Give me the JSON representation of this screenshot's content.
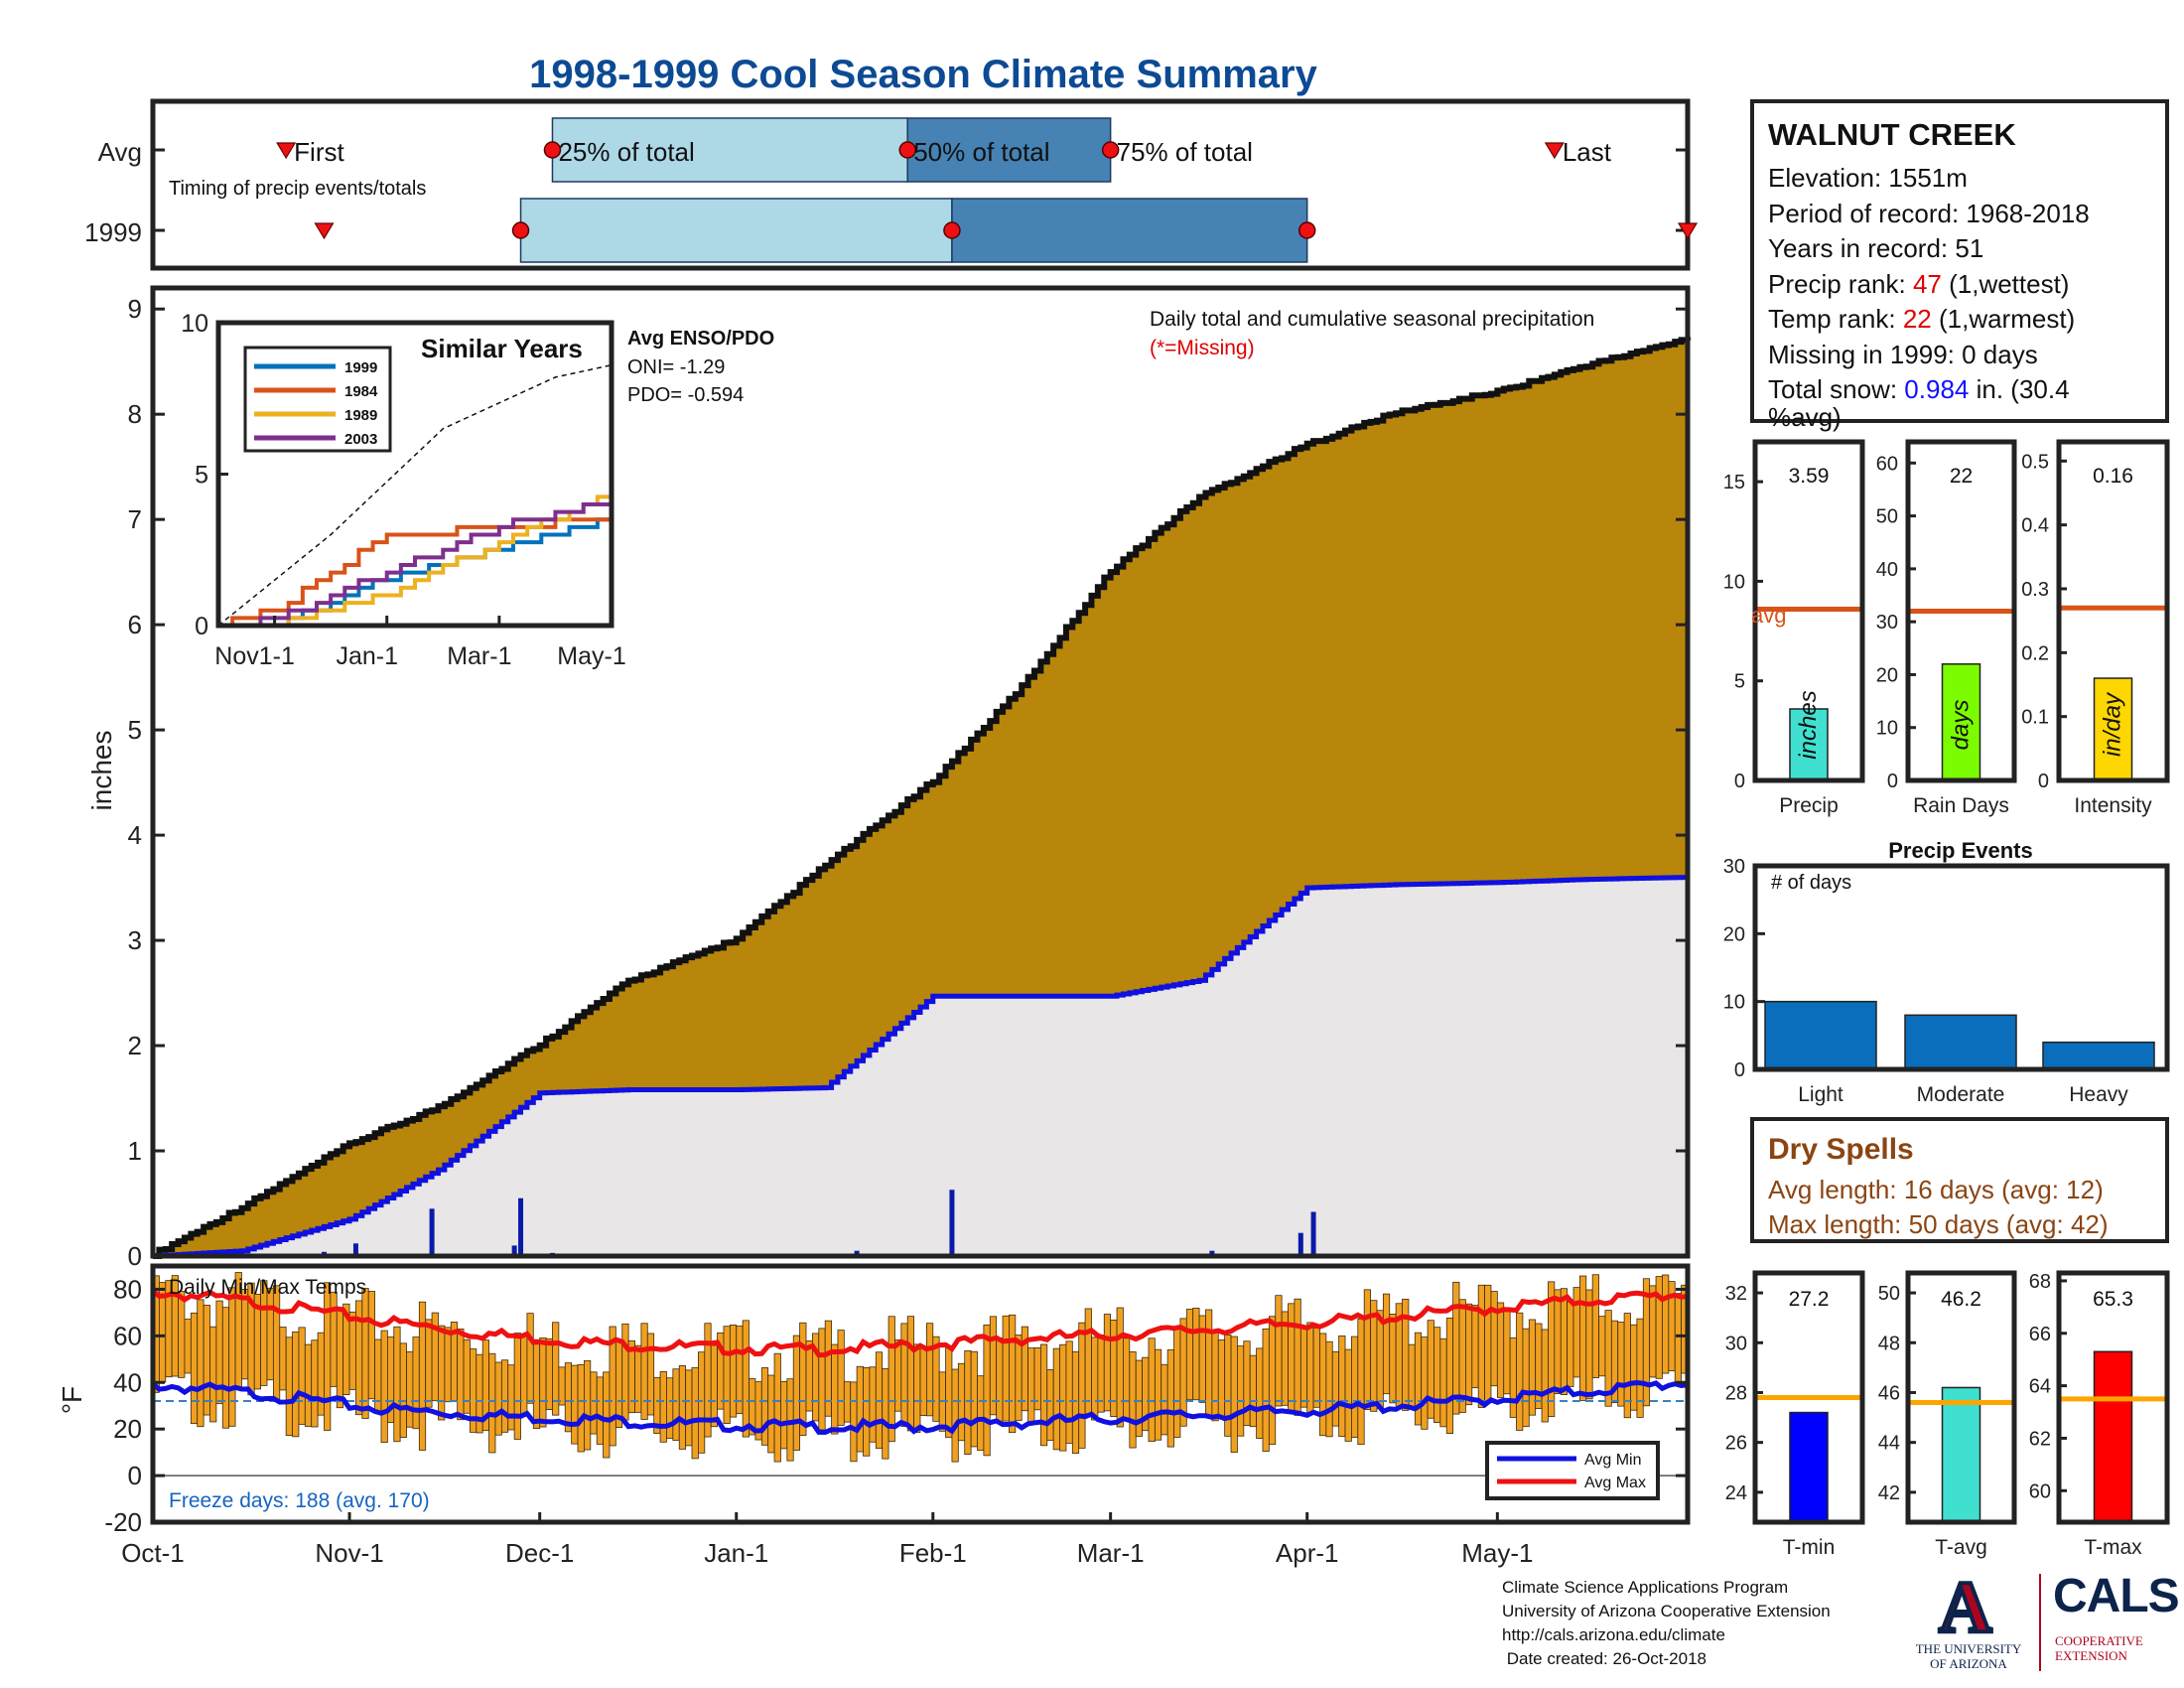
{
  "title": "1998-1999 Cool Season Climate Summary",
  "timing": {
    "row_labels": [
      "Avg",
      "1999"
    ],
    "event_labels": [
      "First",
      "25% of total",
      "50% of total",
      "75% of total",
      "Last"
    ],
    "caption": "Timing of precip events/totals",
    "avg": {
      "first": "Oct-22",
      "p25": "Dec-3",
      "p50": "Jan-28",
      "p75": "Mar-1",
      "last": "May-10"
    },
    "y1999": {
      "first": "Oct-28",
      "p25": "Nov-28",
      "p50": "Feb-4",
      "p75": "Apr-1",
      "last": "May-31"
    }
  },
  "station": {
    "name": "WALNUT CREEK",
    "elevation_label": "Elevation: 1551m",
    "period_label": "Period of record: 1968-2018",
    "years_label": "Years in record: 51",
    "precip_rank_prefix": "Precip rank: ",
    "precip_rank_value": "47",
    "precip_rank_suffix": " (1,wettest)",
    "temp_rank_prefix": "Temp rank: ",
    "temp_rank_value": "22",
    "temp_rank_suffix": " (1,warmest)",
    "missing_label": "Missing in 1999: 0 days",
    "snow_prefix": "Total snow: ",
    "snow_value": "0.984",
    "snow_suffix_line1": " in. (30.4",
    "snow_suffix_line2": "%avg)"
  },
  "main_chart": {
    "ylabel": "inches",
    "annotation": "Daily total and cumulative seasonal precipitation",
    "missing_note": "(*=Missing)",
    "yticks": [
      0,
      1,
      2,
      3,
      4,
      5,
      6,
      7,
      8,
      9
    ],
    "ylim": [
      0,
      9.2
    ]
  },
  "similar_years": {
    "title": "Similar Years",
    "legend": [
      "1999",
      "1984",
      "1989",
      "2003"
    ],
    "colors": [
      "#0072bd",
      "#d95319",
      "#edb120",
      "#7e2f8e"
    ],
    "yticks": [
      0,
      5,
      10
    ],
    "xticks": [
      "Nov1-1",
      "Jan-1",
      "Mar-1",
      "May-1"
    ],
    "enso_title": "Avg ENSO/PDO",
    "oni": "ONI= -1.29",
    "pdo": "PDO= -0.594"
  },
  "temp_chart": {
    "title": "Daily Min/Max Temps",
    "ylabel": "°F",
    "yticks": [
      -20,
      0,
      20,
      40,
      60,
      80
    ],
    "ylim": [
      -20,
      90
    ],
    "freeze_text": "Freeze days: 188 (avg. 170)",
    "legend": [
      "Avg Min",
      "Avg Max"
    ]
  },
  "x_axis": {
    "ticks": [
      "Oct-1",
      "Nov-1",
      "Dec-1",
      "Jan-1",
      "Feb-1",
      "Mar-1",
      "Apr-1",
      "May-1"
    ]
  },
  "precip_bars": {
    "values": [
      "3.59",
      "22",
      "0.16"
    ],
    "inner_labels": [
      "inches",
      "days",
      "in/day"
    ],
    "names": [
      "Precip",
      "Rain Days",
      "Intensity"
    ],
    "avg_label": "avg",
    "yticks_precip": [
      0,
      5,
      10,
      15
    ],
    "yticks_days": [
      0,
      10,
      20,
      30,
      40,
      50,
      60
    ],
    "yticks_intensity": [
      0,
      0.1,
      0.2,
      0.3,
      0.4,
      0.5
    ]
  },
  "precip_events": {
    "title": "Precip Events",
    "ylabel_inner": "# of days",
    "categories": [
      "Light",
      "Moderate",
      "Heavy"
    ],
    "values": [
      10,
      8,
      4
    ],
    "yticks": [
      0,
      10,
      20,
      30
    ]
  },
  "dry_spells": {
    "title": "Dry Spells",
    "avg_line": "Avg length: 16 days (avg: 12)",
    "max_line": "Max length: 50 days (avg: 42)"
  },
  "temp_bars": {
    "values": [
      "27.2",
      "46.2",
      "65.3"
    ],
    "names": [
      "T-min",
      "T-avg",
      "T-max"
    ],
    "yticks_min": [
      24,
      26,
      28,
      30,
      32
    ],
    "yticks_avg": [
      42,
      44,
      46,
      48,
      50
    ],
    "yticks_max": [
      60,
      62,
      64,
      66,
      68
    ]
  },
  "footer": {
    "lines": [
      "Climate Science Applications Program",
      "University of Arizona Cooperative Extension",
      "http://cals.arizona.edu/climate",
      " Date created: 26-Oct-2018"
    ]
  },
  "logos": {
    "ua_letter": "A",
    "ua_text1": "THE UNIVERSITY",
    "ua_text2": "OF ARIZONA",
    "cals_text": "CALS",
    "cals_sub1": "COOPERATIVE",
    "cals_sub2": "EXTENSION"
  },
  "chart_data": [
    {
      "type": "area",
      "name": "cumulative precipitation",
      "x_dates": [
        "Oct-1",
        "Oct-15",
        "Nov-1",
        "Nov-15",
        "Dec-1",
        "Dec-15",
        "Jan-1",
        "Jan-15",
        "Feb-1",
        "Feb-15",
        "Mar-1",
        "Mar-15",
        "Apr-1",
        "Apr-15",
        "May-1",
        "May-15",
        "May-31"
      ],
      "avg_cumulative": [
        0,
        0.45,
        1.05,
        1.4,
        2.0,
        2.6,
        3.0,
        3.7,
        4.5,
        5.4,
        6.5,
        7.2,
        7.7,
        8.0,
        8.2,
        8.45,
        8.7
      ],
      "y1999_cumulative": [
        0,
        0.05,
        0.35,
        0.82,
        1.55,
        1.58,
        1.58,
        1.6,
        2.47,
        2.47,
        2.47,
        2.62,
        3.5,
        3.53,
        3.55,
        3.58,
        3.6
      ],
      "daily_1999": [
        {
          "date": "Oct-28",
          "value": 0.04
        },
        {
          "date": "Nov-2",
          "value": 0.12
        },
        {
          "date": "Nov-14",
          "value": 0.45
        },
        {
          "date": "Nov-27",
          "value": 0.1
        },
        {
          "date": "Nov-28",
          "value": 0.55
        },
        {
          "date": "Dec-3",
          "value": 0.03
        },
        {
          "date": "Jan-20",
          "value": 0.05
        },
        {
          "date": "Jan-23",
          "value": 0.02
        },
        {
          "date": "Feb-4",
          "value": 0.63
        },
        {
          "date": "Mar-17",
          "value": 0.05
        },
        {
          "date": "Mar-31",
          "value": 0.22
        },
        {
          "date": "Apr-2",
          "value": 0.42
        }
      ],
      "ylim": [
        0,
        9.2
      ]
    },
    {
      "type": "line",
      "name": "Similar Years cumulative",
      "x": [
        "Nov1-1",
        "Jan-1",
        "Mar-1",
        "May-1"
      ],
      "series": [
        {
          "name": "1999",
          "values": [
            0.0,
            1.6,
            2.5,
            3.6
          ]
        },
        {
          "name": "1984",
          "values": [
            0.5,
            3.0,
            3.2,
            3.6
          ]
        },
        {
          "name": "1989",
          "values": [
            0.1,
            1.0,
            2.8,
            4.4
          ]
        },
        {
          "name": "2003",
          "values": [
            0.2,
            1.8,
            3.3,
            4.1
          ]
        }
      ],
      "avg_dashed": [
        0,
        3.0,
        6.5,
        8.2
      ],
      "ylim": [
        0,
        10
      ]
    },
    {
      "type": "bar",
      "name": "Daily Min/Max Temps",
      "x_range": [
        "Oct-1",
        "May-31"
      ],
      "avg_max": [
        80,
        75,
        68,
        62,
        58,
        56,
        55,
        57,
        60,
        62,
        65,
        68,
        72,
        76,
        79
      ],
      "avg_min": [
        40,
        36,
        30,
        27,
        25,
        23,
        22,
        22,
        24,
        26,
        28,
        30,
        33,
        37,
        41
      ],
      "ylim": [
        -20,
        90
      ]
    },
    {
      "type": "bar",
      "name": "Precip summary",
      "categories": [
        "Precip",
        "Rain Days",
        "Intensity"
      ],
      "values": [
        3.59,
        22,
        0.16
      ],
      "averages": [
        8.6,
        32,
        0.27
      ]
    },
    {
      "type": "bar",
      "name": "Precip Events",
      "categories": [
        "Light",
        "Moderate",
        "Heavy"
      ],
      "values": [
        10,
        8,
        4
      ],
      "ylim": [
        0,
        30
      ]
    },
    {
      "type": "bar",
      "name": "Temperature summary",
      "categories": [
        "T-min",
        "T-avg",
        "T-max"
      ],
      "values": [
        27.2,
        46.2,
        65.3
      ],
      "averages": [
        27.8,
        45.6,
        63.5
      ]
    }
  ]
}
